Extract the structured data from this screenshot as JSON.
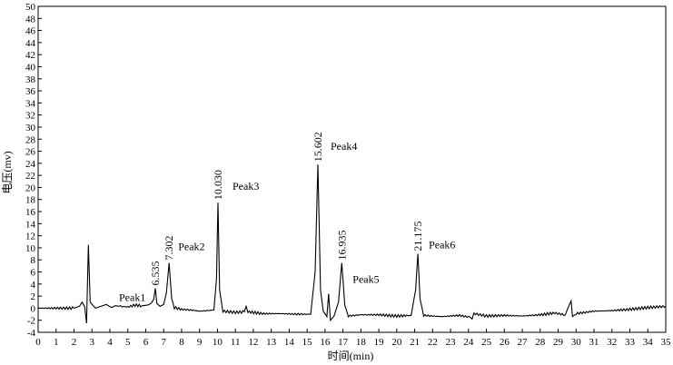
{
  "chart_data": {
    "type": "line",
    "title": "",
    "xlabel": "时间(min)",
    "ylabel": "电压(mv)",
    "xlim": [
      0,
      35
    ],
    "ylim": [
      -4,
      50
    ],
    "x_ticks": [
      0,
      1,
      2,
      3,
      4,
      5,
      6,
      7,
      8,
      9,
      10,
      11,
      12,
      13,
      14,
      15,
      16,
      17,
      18,
      19,
      20,
      21,
      22,
      23,
      24,
      25,
      26,
      27,
      28,
      29,
      30,
      31,
      32,
      33,
      34,
      35
    ],
    "y_ticks": [
      -4,
      -2,
      0,
      2,
      4,
      6,
      8,
      10,
      12,
      14,
      16,
      18,
      20,
      22,
      24,
      26,
      28,
      30,
      32,
      34,
      36,
      38,
      40,
      42,
      44,
      46,
      48,
      50
    ],
    "grid": false,
    "legend": "none",
    "line_color": "#000000",
    "series": [
      {
        "x": [
          0,
          1,
          2,
          2.3,
          2.45,
          2.6,
          2.7,
          2.8,
          2.9,
          3.2,
          3.5,
          3.8,
          4.1,
          4.3,
          4.6,
          5.0,
          5.4,
          5.8,
          6.1,
          6.3,
          6.45,
          6.535,
          6.62,
          6.8,
          7.0,
          7.15,
          7.302,
          7.45,
          7.6,
          8.0,
          8.5,
          9.0,
          9.5,
          9.8,
          9.95,
          10.03,
          10.12,
          10.3,
          11.0,
          11.5,
          11.6,
          11.7,
          12.5,
          13.5,
          14.5,
          15.2,
          15.45,
          15.602,
          15.75,
          15.9,
          16.1,
          16.2,
          16.3,
          16.5,
          16.75,
          16.935,
          17.1,
          17.3,
          18.0,
          19.0,
          20.0,
          20.8,
          21.05,
          21.175,
          21.3,
          21.5,
          22.5,
          23.5,
          24.1,
          24.2,
          24.3,
          25.0,
          26.0,
          27.0,
          28.0,
          28.8,
          29.4,
          29.6,
          29.72,
          29.8,
          30.0,
          31.0,
          32.0,
          33.0,
          34.0,
          35.0
        ],
        "y": [
          0,
          0,
          0,
          0.3,
          1,
          0.2,
          -2.5,
          10.5,
          1,
          0,
          0.3,
          0.6,
          0.1,
          0.4,
          0.3,
          0.2,
          0.5,
          0.4,
          0.5,
          0.8,
          1.5,
          3.3,
          0.8,
          0.3,
          0.6,
          2.5,
          7.5,
          1.5,
          0.1,
          -0.2,
          -0.3,
          -0.5,
          -0.4,
          -0.3,
          5,
          17.5,
          3,
          -0.5,
          -0.7,
          -0.6,
          0.3,
          -0.6,
          -0.9,
          -0.9,
          -1,
          -1,
          6,
          23.8,
          3,
          -0.5,
          -1.4,
          2.4,
          -2,
          -1.3,
          1,
          7.5,
          0.5,
          -1.3,
          -1.1,
          -1.1,
          -1.3,
          -1.2,
          3,
          9,
          1.5,
          -1.2,
          -1.4,
          -1.2,
          -1.5,
          -1.8,
          -0.9,
          -1.3,
          -1.2,
          -1.3,
          -1.1,
          -0.8,
          -1.1,
          0.4,
          1.2,
          -1.4,
          -0.9,
          -0.5,
          -0.4,
          -0.2,
          0.1,
          0.3
        ]
      }
    ],
    "peaks": [
      {
        "name": "Peak1",
        "rt": "6.535",
        "x": 6.535,
        "y": 3.3
      },
      {
        "name": "Peak2",
        "rt": "7.302",
        "x": 7.302,
        "y": 7.5
      },
      {
        "name": "Peak3",
        "rt": "10.030",
        "x": 10.03,
        "y": 17.5
      },
      {
        "name": "Peak4",
        "rt": "15.602",
        "x": 15.602,
        "y": 23.8
      },
      {
        "name": "Peak5",
        "rt": "16.935",
        "x": 16.935,
        "y": 7.5
      },
      {
        "name": "Peak6",
        "rt": "21.175",
        "x": 21.175,
        "y": 9
      }
    ]
  }
}
